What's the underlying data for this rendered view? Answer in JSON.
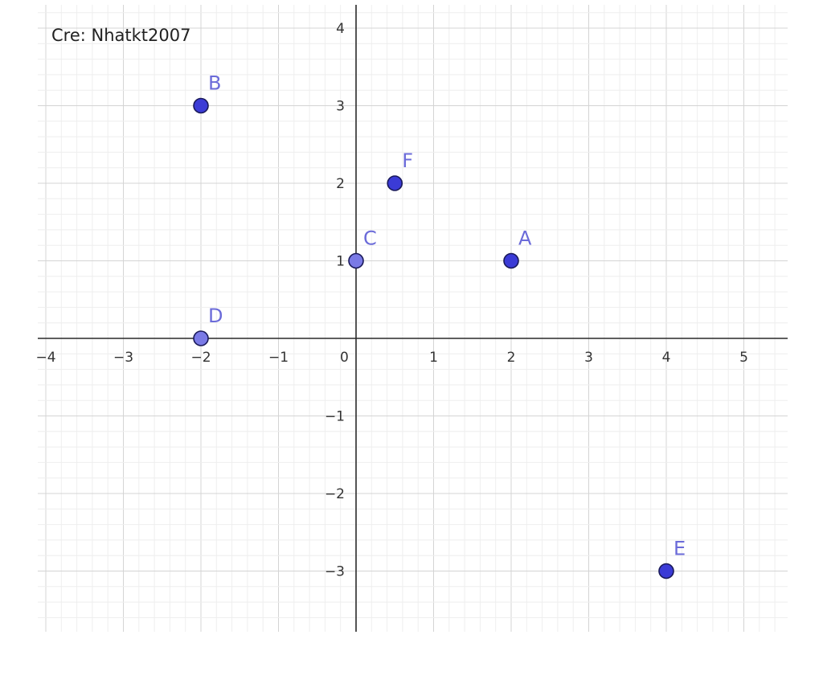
{
  "credit": "Cre: Nhatkt2007",
  "chart_data": {
    "type": "scatter",
    "xlim": [
      -4.05,
      5.55
    ],
    "ylim": [
      -3.8,
      4.3
    ],
    "grid": true,
    "minor_divisions": 5,
    "x_ticks": [
      -4,
      -3,
      -2,
      -1,
      0,
      1,
      2,
      3,
      4,
      5
    ],
    "y_ticks": [
      -3,
      -2,
      -1,
      1,
      2,
      3,
      4
    ],
    "x_tick_labels": [
      "−4",
      "−3",
      "−2",
      "−1",
      "0",
      "1",
      "2",
      "3",
      "4",
      "5"
    ],
    "y_tick_labels": [
      "−3",
      "−2",
      "−1",
      "1",
      "2",
      "3",
      "4"
    ],
    "points": [
      {
        "label": "B",
        "x": -2,
        "y": 3,
        "color": "#3b3bd6"
      },
      {
        "label": "F",
        "x": 0.5,
        "y": 2,
        "color": "#3b3bd6"
      },
      {
        "label": "C",
        "x": 0,
        "y": 1,
        "color": "#7a7ae6"
      },
      {
        "label": "A",
        "x": 2,
        "y": 1,
        "color": "#3b3bd6"
      },
      {
        "label": "D",
        "x": -2,
        "y": 0,
        "color": "#7a7ae6"
      },
      {
        "label": "E",
        "x": 4,
        "y": -3,
        "color": "#3b3bd6"
      }
    ],
    "label_color": "#6b6bd9",
    "axis_color": "#2a2a2a"
  }
}
